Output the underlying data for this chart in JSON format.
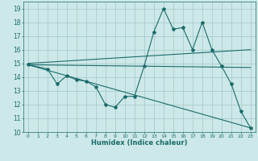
{
  "xlabel": "Humidex (Indice chaleur)",
  "bg_color": "#cde8e8",
  "grid_color": "#aacccc",
  "line_color": "#1a6b6b",
  "xlim": [
    -0.5,
    23.5
  ],
  "ylim": [
    10,
    19.5
  ],
  "xticks": [
    0,
    1,
    2,
    3,
    4,
    5,
    6,
    7,
    8,
    9,
    10,
    11,
    12,
    13,
    14,
    15,
    16,
    17,
    18,
    19,
    20,
    21,
    22,
    23
  ],
  "yticks": [
    10,
    11,
    12,
    13,
    14,
    15,
    16,
    17,
    18,
    19
  ],
  "curve1_x": [
    0,
    2,
    3,
    4,
    5,
    6,
    7,
    8,
    9,
    10,
    11,
    12,
    13,
    14,
    15,
    16,
    17,
    18,
    19,
    20,
    21,
    22,
    23
  ],
  "curve1_y": [
    14.9,
    14.6,
    13.5,
    14.1,
    13.8,
    13.7,
    13.3,
    12.0,
    11.8,
    12.6,
    12.6,
    14.8,
    17.3,
    19.0,
    17.5,
    17.6,
    16.0,
    18.0,
    16.0,
    14.8,
    13.5,
    11.5,
    10.3
  ],
  "line1_x": [
    0,
    23
  ],
  "line1_y": [
    15.0,
    16.0
  ],
  "line2_x": [
    0,
    23
  ],
  "line2_y": [
    14.9,
    14.7
  ],
  "line3_x": [
    0,
    23
  ],
  "line3_y": [
    14.9,
    10.3
  ]
}
